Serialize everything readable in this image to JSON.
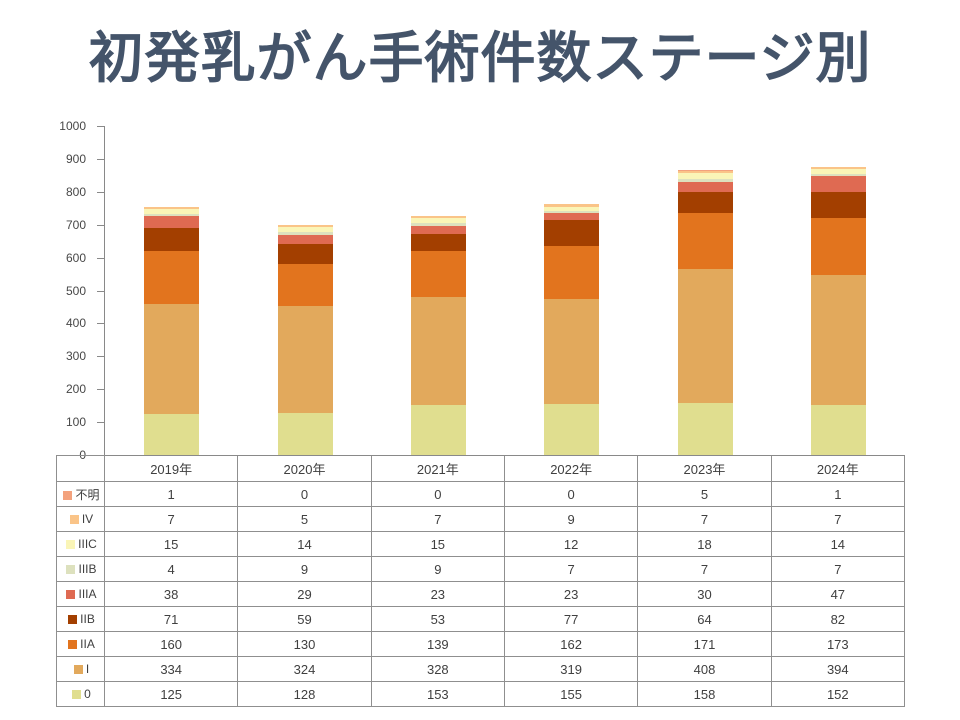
{
  "title": "初発乳がん手術件数ステージ別",
  "colors": {
    "title": "#44546A",
    "axis_line": "#898989",
    "axis_text": "#474747",
    "table_border": "#8f8f8f",
    "table_text": "#404040"
  },
  "chart_data": {
    "type": "bar",
    "stacked": true,
    "title": "初発乳がん手術件数ステージ別",
    "xlabel": "",
    "ylabel": "",
    "ylim": [
      0,
      1000
    ],
    "ytick_step": 100,
    "grid": false,
    "legend_position": "data-table-left",
    "categories": [
      "2019年",
      "2020年",
      "2021年",
      "2022年",
      "2023年",
      "2024年"
    ],
    "series": [
      {
        "name": "0",
        "color": "#E0DE8F",
        "values": [
          125,
          128,
          153,
          155,
          158,
          152
        ]
      },
      {
        "name": "I",
        "color": "#E2A95C",
        "values": [
          334,
          324,
          328,
          319,
          408,
          394
        ]
      },
      {
        "name": "IIA",
        "color": "#E2741E",
        "values": [
          160,
          130,
          139,
          162,
          171,
          173
        ]
      },
      {
        "name": "IIB",
        "color": "#A33F00",
        "values": [
          71,
          59,
          53,
          77,
          64,
          82
        ]
      },
      {
        "name": "IIIA",
        "color": "#DF6A52",
        "values": [
          38,
          29,
          23,
          23,
          30,
          47
        ]
      },
      {
        "name": "IIIB",
        "color": "#DDE1BE",
        "values": [
          4,
          9,
          9,
          7,
          7,
          7
        ]
      },
      {
        "name": "IIIC",
        "color": "#FAF5B7",
        "values": [
          15,
          14,
          15,
          12,
          18,
          14
        ]
      },
      {
        "name": "IV",
        "color": "#FAC488",
        "values": [
          7,
          5,
          7,
          9,
          7,
          7
        ]
      },
      {
        "name": "不明",
        "color": "#F3A27D",
        "values": [
          1,
          0,
          0,
          0,
          5,
          1
        ]
      }
    ]
  }
}
